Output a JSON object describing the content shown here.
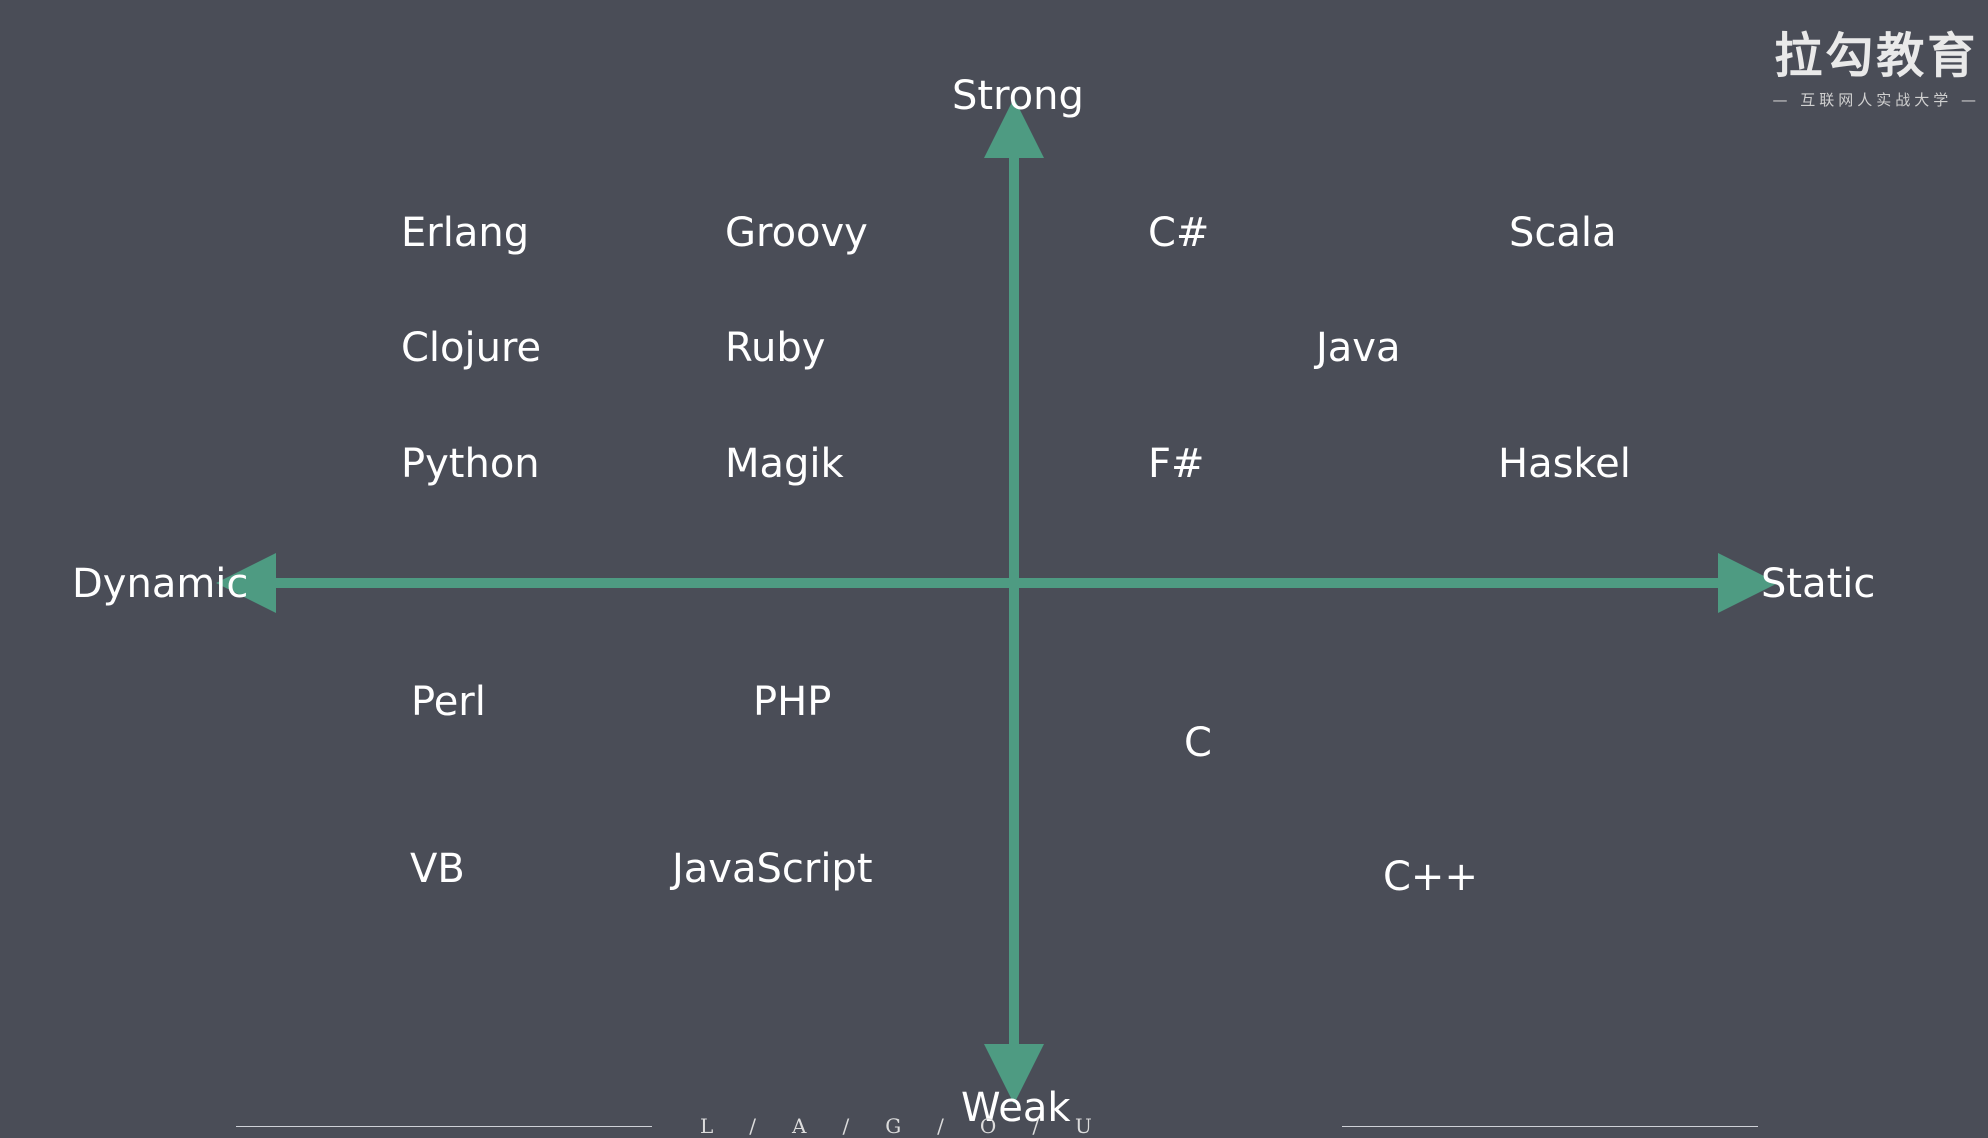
{
  "axes": {
    "top": "Strong",
    "bottom": "Weak",
    "left": "Dynamic",
    "right": "Static"
  },
  "languages": {
    "erlang": "Erlang",
    "groovy": "Groovy",
    "csharp": "C#",
    "scala": "Scala",
    "clojure": "Clojure",
    "ruby": "Ruby",
    "java": "Java",
    "python": "Python",
    "magik": "Magik",
    "fsharp": "F#",
    "haskel": "Haskel",
    "perl": "Perl",
    "php": "PHP",
    "c": "C",
    "vb": "VB",
    "javascript": "JavaScript",
    "cpp": "C++"
  },
  "logo": {
    "main": "拉勾教育",
    "sub": "— 互联网人实战大学 —"
  },
  "footer": {
    "text": "L/A/G/O/U"
  },
  "colors": {
    "background": "#4a4d57",
    "axis": "#4e9b82",
    "text": "#ffffff"
  }
}
